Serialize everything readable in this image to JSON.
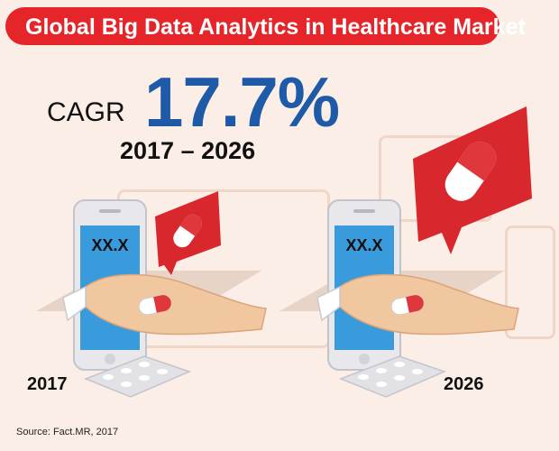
{
  "chart_data": {
    "type": "other",
    "title": "Global Big Data Analytics in Healthcare Market",
    "metric_label": "CAGR",
    "cagr": "17.7%",
    "period": "2017 – 2026",
    "years": [
      "2017",
      "2026"
    ],
    "values": [
      "XX.X",
      "XX.X"
    ],
    "source": "Source: Fact.MR, 2017"
  },
  "icons": [
    "phone-icon",
    "hand-icon",
    "capsule-icon",
    "speech-bubble-icon",
    "pill-blister-icon"
  ],
  "colors": {
    "accent": "#e5252a",
    "cagr_value": "#1f5aa8",
    "background": "#fbeee6",
    "phone_screen": "#3a9bdc"
  }
}
